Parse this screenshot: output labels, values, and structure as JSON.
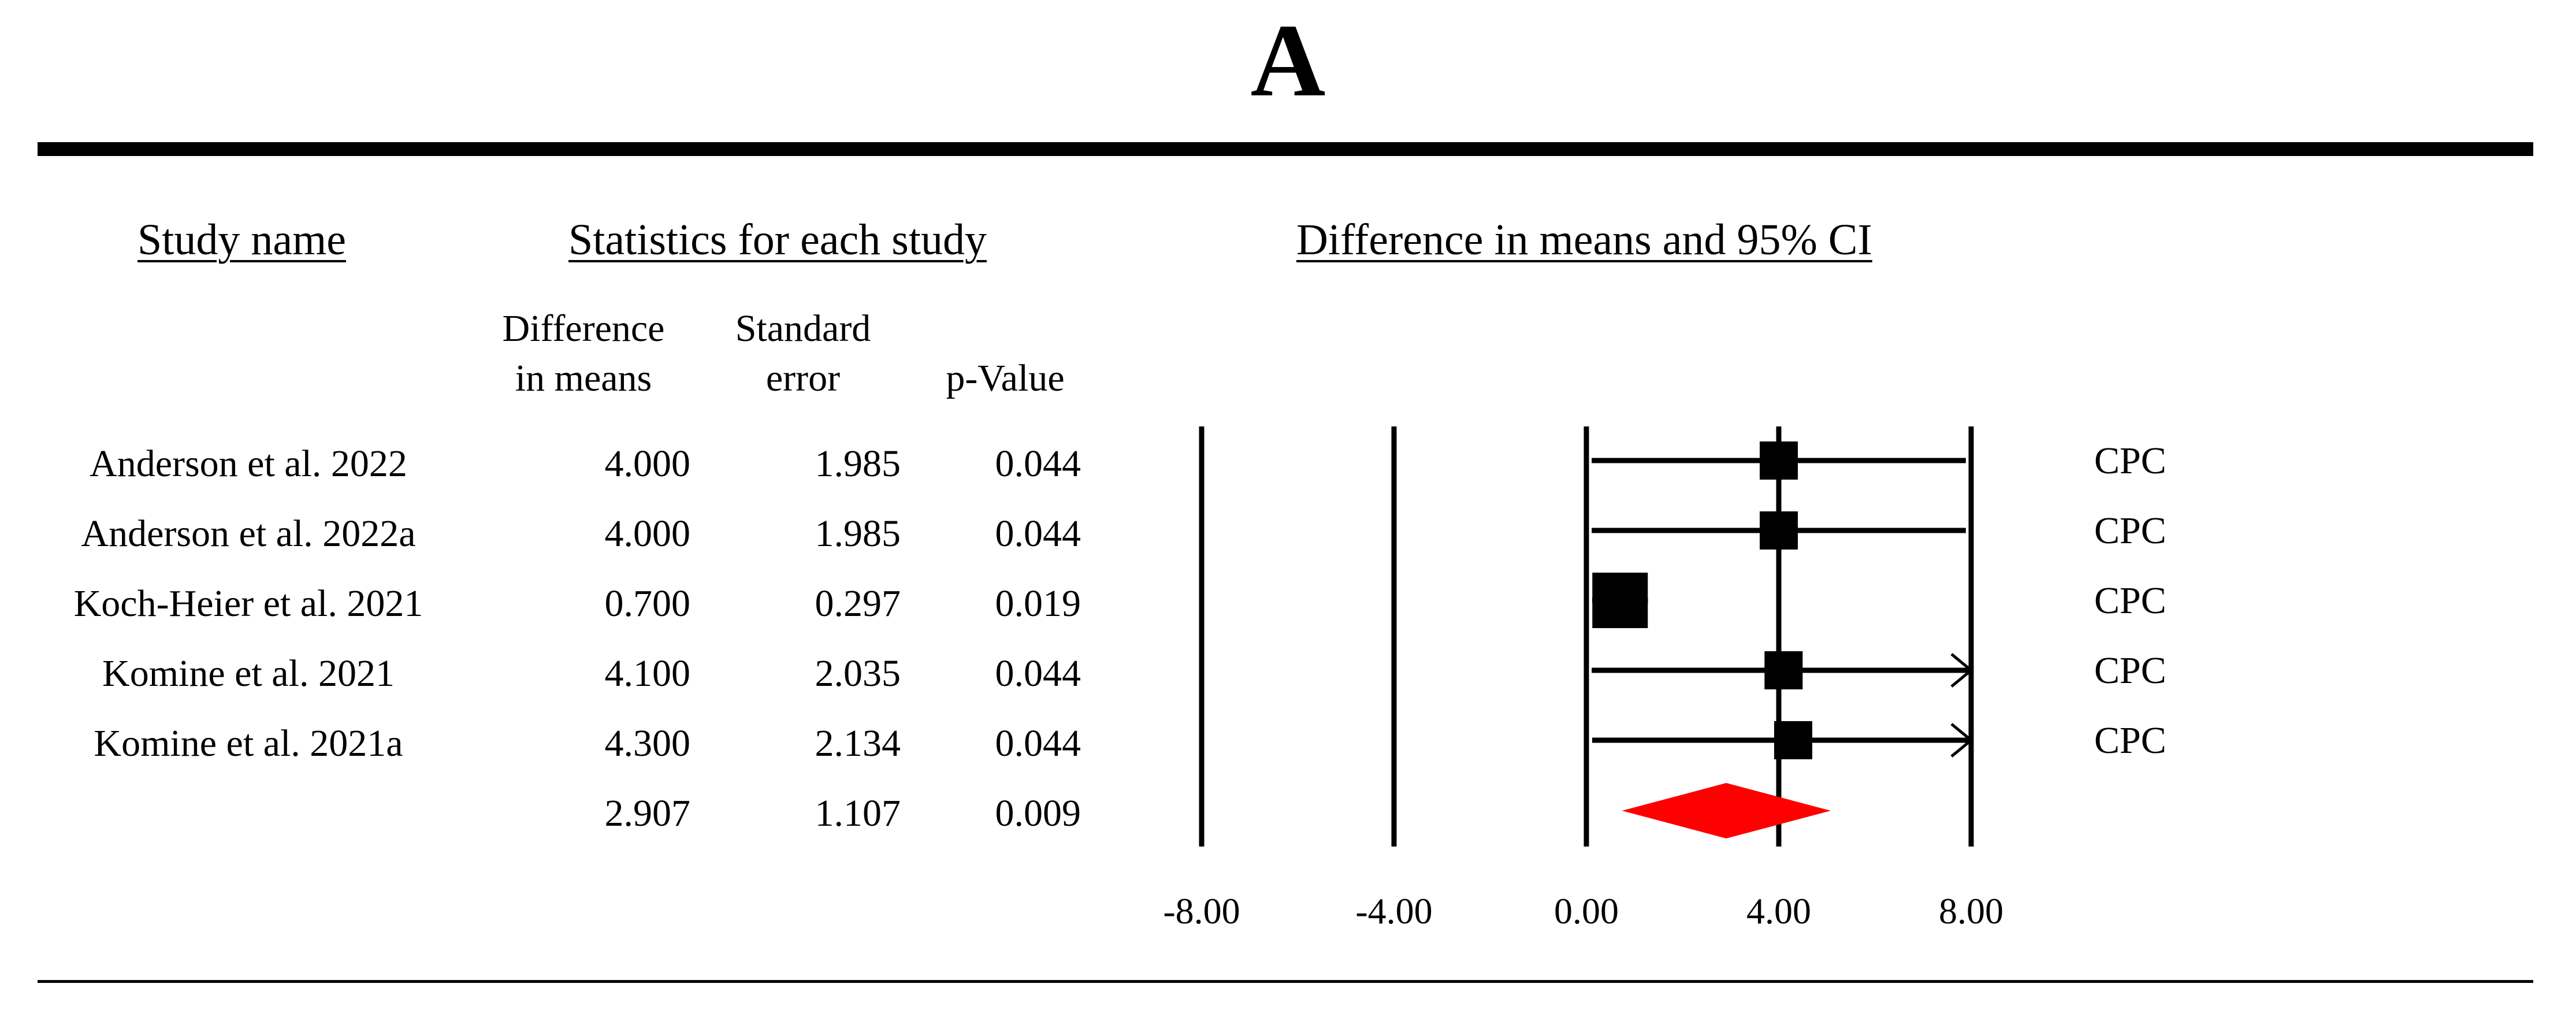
{
  "panel_label": "A",
  "headers": {
    "study_name": "Study name",
    "statistics": "Statistics for each study",
    "plot": "Difference in means and 95% CI"
  },
  "columns": {
    "diff_line1": "Difference",
    "diff_line2": "in means",
    "se_line1": "Standard",
    "se_line2": "error",
    "p": "p-Value"
  },
  "rows": [
    {
      "study": "Anderson et al. 2022",
      "diff": "4.000",
      "se": "1.985",
      "p": "0.044",
      "group": "CPC"
    },
    {
      "study": "Anderson et al. 2022a",
      "diff": "4.000",
      "se": "1.985",
      "p": "0.044",
      "group": "CPC"
    },
    {
      "study": "Koch-Heier et al. 2021",
      "diff": "0.700",
      "se": "0.297",
      "p": "0.019",
      "group": "CPC"
    },
    {
      "study": "Komine et al.  2021",
      "diff": "4.100",
      "se": "2.035",
      "p": "0.044",
      "group": "CPC"
    },
    {
      "study": "Komine et al.  2021a",
      "diff": "4.300",
      "se": "2.134",
      "p": "0.044",
      "group": "CPC"
    }
  ],
  "summary": {
    "diff": "2.907",
    "se": "1.107",
    "p": "0.009"
  },
  "chart_data": {
    "type": "forest",
    "title": "Difference in means and 95% CI",
    "xlim": [
      -8,
      8
    ],
    "ticks": [
      -8,
      -4,
      0,
      4,
      8
    ],
    "tick_labels": [
      "-8.00",
      "-4.00",
      "0.00",
      "4.00",
      "8.00"
    ],
    "studies": [
      {
        "name": "Anderson et al. 2022",
        "estimate": 4.0,
        "lower": 0.11,
        "upper": 7.89,
        "weight": 1.0
      },
      {
        "name": "Anderson et al. 2022a",
        "estimate": 4.0,
        "lower": 0.11,
        "upper": 7.89,
        "weight": 1.0
      },
      {
        "name": "Koch-Heier et al. 2021",
        "estimate": 0.7,
        "lower": 0.12,
        "upper": 1.28,
        "weight": 2.0
      },
      {
        "name": "Komine et al.  2021",
        "estimate": 4.1,
        "lower": 0.11,
        "upper": 8.09,
        "weight": 1.0
      },
      {
        "name": "Komine et al.  2021a",
        "estimate": 4.3,
        "lower": 0.12,
        "upper": 8.48,
        "weight": 1.0
      }
    ],
    "pooled": {
      "estimate": 2.907,
      "lower": 0.74,
      "upper": 5.08
    },
    "colors": {
      "pooled": "#ff0000",
      "marks": "#000000"
    }
  }
}
